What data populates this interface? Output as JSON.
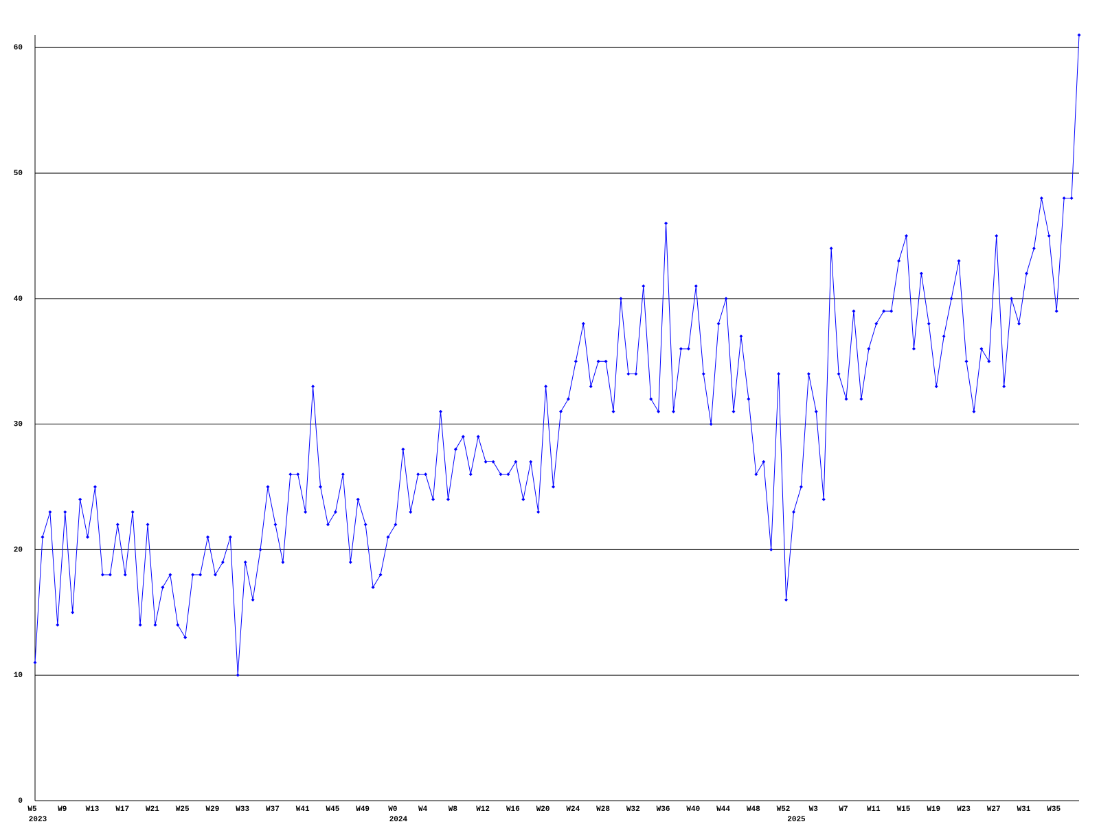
{
  "chart_data": {
    "type": "line",
    "categories": [
      "W5",
      null,
      null,
      null,
      "W9",
      null,
      null,
      null,
      "W13",
      null,
      null,
      null,
      "W17",
      null,
      null,
      null,
      "W21",
      null,
      null,
      null,
      "W25",
      null,
      null,
      null,
      "W29",
      null,
      null,
      null,
      "W33",
      null,
      null,
      null,
      "W37",
      null,
      null,
      null,
      "W41",
      null,
      null,
      null,
      "W45",
      null,
      null,
      null,
      "W49",
      null,
      null,
      null,
      "W0",
      null,
      null,
      null,
      "W4",
      null,
      null,
      null,
      "W8",
      null,
      null,
      null,
      "W12",
      null,
      null,
      null,
      "W16",
      null,
      null,
      null,
      "W20",
      null,
      null,
      null,
      "W24",
      null,
      null,
      null,
      "W28",
      null,
      null,
      null,
      "W32",
      null,
      null,
      null,
      "W36",
      null,
      null,
      null,
      "W40",
      null,
      null,
      null,
      "W44",
      null,
      null,
      null,
      "W48",
      null,
      null,
      null,
      "W52",
      null,
      null,
      null,
      "W3",
      null,
      null,
      null,
      "W7",
      null,
      null,
      null,
      "W11",
      null,
      null,
      null,
      "W15",
      null,
      null,
      null,
      "W19",
      null,
      null,
      null,
      "W23",
      null,
      null,
      null,
      "W27",
      null,
      null,
      null,
      "W31",
      null,
      null,
      null,
      "W35",
      null,
      null,
      null
    ],
    "x_year_labels": [
      "2023",
      null,
      null,
      null,
      null,
      null,
      null,
      null,
      null,
      null,
      null,
      null,
      null,
      null,
      null,
      null,
      null,
      null,
      null,
      null,
      null,
      null,
      null,
      null,
      null,
      null,
      null,
      null,
      null,
      null,
      null,
      null,
      null,
      null,
      null,
      null,
      null,
      null,
      null,
      null,
      null,
      null,
      null,
      null,
      null,
      null,
      null,
      null,
      "2024",
      null,
      null,
      null,
      null,
      null,
      null,
      null,
      null,
      null,
      null,
      null,
      null,
      null,
      null,
      null,
      null,
      null,
      null,
      null,
      null,
      null,
      null,
      null,
      null,
      null,
      null,
      null,
      null,
      null,
      null,
      null,
      null,
      null,
      null,
      null,
      null,
      null,
      null,
      null,
      null,
      null,
      null,
      null,
      null,
      null,
      null,
      null,
      null,
      null,
      null,
      null,
      null,
      "2025",
      null,
      null,
      null,
      null,
      null,
      null,
      null,
      null,
      null,
      null,
      null,
      null,
      null,
      null,
      null,
      null,
      null,
      null,
      null,
      null,
      null,
      null,
      null,
      null,
      null,
      null,
      null,
      null,
      null,
      null,
      null,
      null,
      null,
      null,
      null,
      null,
      null,
      null
    ],
    "series": [
      {
        "color": "#0000ff",
        "values": [
          11,
          21,
          23,
          14,
          23,
          15,
          24,
          21,
          25,
          18,
          18,
          22,
          18,
          23,
          14,
          22,
          14,
          17,
          18,
          14,
          13,
          18,
          18,
          21,
          18,
          19,
          21,
          10,
          19,
          16,
          20,
          25,
          22,
          19,
          26,
          26,
          23,
          33,
          25,
          22,
          23,
          26,
          19,
          24,
          22,
          17,
          18,
          21,
          22,
          28,
          23,
          26,
          26,
          24,
          31,
          24,
          28,
          29,
          26,
          29,
          27,
          27,
          26,
          26,
          27,
          24,
          27,
          23,
          33,
          25,
          31,
          32,
          35,
          38,
          33,
          35,
          35,
          31,
          40,
          34,
          34,
          41,
          32,
          31,
          46,
          31,
          36,
          36,
          41,
          34,
          30,
          38,
          40,
          31,
          37,
          32,
          26,
          27,
          20,
          34,
          16,
          23,
          25,
          34,
          31,
          24,
          44,
          34,
          32,
          39,
          32,
          36,
          38,
          39,
          39,
          43,
          45,
          36,
          42,
          38,
          33,
          37,
          40,
          43,
          35,
          31,
          36,
          35,
          45,
          33,
          40,
          38,
          42,
          44,
          48,
          45,
          39,
          48,
          48,
          61
        ]
      }
    ],
    "ylim": [
      0,
      61
    ],
    "yticks": [
      0,
      10,
      20,
      30,
      40,
      50,
      60
    ],
    "grid": true
  }
}
